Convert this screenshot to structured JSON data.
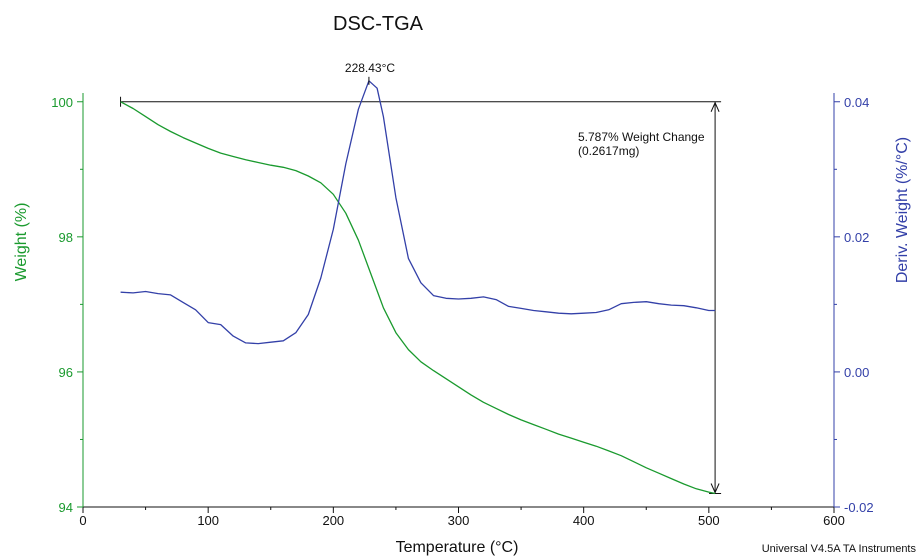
{
  "colors": {
    "weight": "#1a9a2e",
    "deriv": "#3340a8",
    "axis": "#111111"
  },
  "chart_data": {
    "type": "line",
    "title": "DSC-TGA",
    "xlabel": "Temperature (°C)",
    "ylabel_left": "Weight (%)",
    "ylabel_right": "Deriv. Weight (%/°C)",
    "xlim": [
      0,
      600
    ],
    "ylim_left": [
      94,
      100.1
    ],
    "ylim_right": [
      -0.02,
      0.041
    ],
    "x_ticks": [
      "0",
      "100",
      "200",
      "300",
      "400",
      "500",
      "600"
    ],
    "y_left_ticks": [
      "94",
      "96",
      "98",
      "100"
    ],
    "y_right_ticks": [
      "-0.02",
      "0.00",
      "0.02",
      "0.04"
    ],
    "grid": false,
    "series": [
      {
        "axis": "left",
        "points": [
          [
            30,
            100.0
          ],
          [
            40,
            99.9
          ],
          [
            50,
            99.78
          ],
          [
            60,
            99.66
          ],
          [
            70,
            99.56
          ],
          [
            80,
            99.47
          ],
          [
            90,
            99.39
          ],
          [
            100,
            99.31
          ],
          [
            110,
            99.24
          ],
          [
            120,
            99.19
          ],
          [
            130,
            99.14
          ],
          [
            140,
            99.1
          ],
          [
            150,
            99.06
          ],
          [
            160,
            99.03
          ],
          [
            170,
            98.98
          ],
          [
            180,
            98.9
          ],
          [
            190,
            98.8
          ],
          [
            200,
            98.63
          ],
          [
            210,
            98.35
          ],
          [
            220,
            97.95
          ],
          [
            230,
            97.45
          ],
          [
            240,
            96.95
          ],
          [
            250,
            96.58
          ],
          [
            260,
            96.33
          ],
          [
            270,
            96.15
          ],
          [
            280,
            96.02
          ],
          [
            290,
            95.9
          ],
          [
            300,
            95.78
          ],
          [
            310,
            95.66
          ],
          [
            320,
            95.55
          ],
          [
            330,
            95.46
          ],
          [
            340,
            95.37
          ],
          [
            350,
            95.29
          ],
          [
            360,
            95.22
          ],
          [
            370,
            95.15
          ],
          [
            380,
            95.08
          ],
          [
            390,
            95.02
          ],
          [
            400,
            94.96
          ],
          [
            410,
            94.9
          ],
          [
            420,
            94.83
          ],
          [
            430,
            94.76
          ],
          [
            440,
            94.67
          ],
          [
            450,
            94.58
          ],
          [
            460,
            94.5
          ],
          [
            470,
            94.42
          ],
          [
            480,
            94.34
          ],
          [
            490,
            94.27
          ],
          [
            500,
            94.22
          ],
          [
            505,
            94.2
          ]
        ]
      },
      {
        "axis": "right",
        "points": [
          [
            30,
            0.0118
          ],
          [
            40,
            0.0117
          ],
          [
            50,
            0.0119
          ],
          [
            60,
            0.0116
          ],
          [
            70,
            0.0114
          ],
          [
            80,
            0.0103
          ],
          [
            90,
            0.0092
          ],
          [
            100,
            0.0073
          ],
          [
            110,
            0.007
          ],
          [
            120,
            0.0053
          ],
          [
            130,
            0.0043
          ],
          [
            140,
            0.0042
          ],
          [
            150,
            0.0044
          ],
          [
            160,
            0.0046
          ],
          [
            170,
            0.0058
          ],
          [
            180,
            0.0085
          ],
          [
            190,
            0.0139
          ],
          [
            200,
            0.0211
          ],
          [
            210,
            0.0308
          ],
          [
            220,
            0.0389
          ],
          [
            228.43,
            0.0431
          ],
          [
            235,
            0.042
          ],
          [
            240,
            0.0378
          ],
          [
            250,
            0.0258
          ],
          [
            260,
            0.0168
          ],
          [
            270,
            0.0132
          ],
          [
            280,
            0.0113
          ],
          [
            290,
            0.0109
          ],
          [
            300,
            0.0108
          ],
          [
            310,
            0.0109
          ],
          [
            320,
            0.0111
          ],
          [
            330,
            0.0107
          ],
          [
            340,
            0.0097
          ],
          [
            350,
            0.0094
          ],
          [
            360,
            0.0091
          ],
          [
            370,
            0.0089
          ],
          [
            380,
            0.0087
          ],
          [
            390,
            0.0086
          ],
          [
            400,
            0.0087
          ],
          [
            410,
            0.0088
          ],
          [
            420,
            0.0092
          ],
          [
            430,
            0.0101
          ],
          [
            440,
            0.0103
          ],
          [
            450,
            0.0104
          ],
          [
            460,
            0.0101
          ],
          [
            470,
            0.0099
          ],
          [
            480,
            0.0098
          ],
          [
            490,
            0.0095
          ],
          [
            500,
            0.0091
          ],
          [
            505,
            0.0091
          ]
        ]
      }
    ],
    "peak": {
      "x": 228.43,
      "y": 0.0431,
      "label": "228.43°C"
    },
    "weight_change": {
      "x_start": 30,
      "x_end": 505,
      "y_top": 100.0,
      "y_bottom": 94.2,
      "label_line1": "5.787% Weight Change",
      "label_line2": "(0.2617mg)"
    },
    "footer": "Universal V4.5A TA Instruments"
  }
}
